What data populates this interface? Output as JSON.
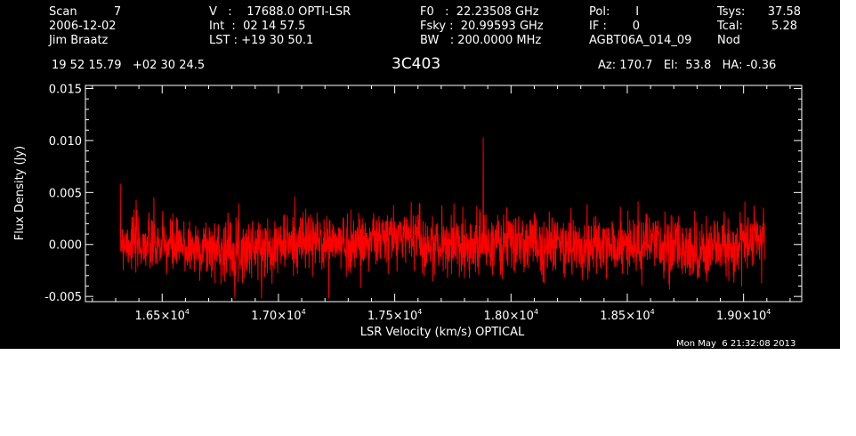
{
  "header": {
    "col1": [
      "Scan          7",
      "2006-12-02",
      "Jim Braatz"
    ],
    "col2": [
      "V   :    17688.0 OPTI-LSR",
      "Int  :  02 14 57.5",
      "LST : +19 30 50.1"
    ],
    "col3": [
      "F0   :  22.23508 GHz",
      "Fsky :  20.99593 GHz",
      "BW   : 200.0000 MHz"
    ],
    "col4": [
      "Pol:       I",
      "IF :       0",
      "AGBT06A_014_09"
    ],
    "col5": [
      "Tsys:",
      "Tcal:",
      "Nod"
    ],
    "col6": [
      "37.58",
      "5.28",
      ""
    ],
    "coords": "19 52 15.79   +02 30 24.5",
    "source": "3C403",
    "pointing": "Az: 170.7   El:  53.8   HA: -0.36"
  },
  "footer": {
    "timestamp": "Mon May  6 21:32:08 2013"
  },
  "colors": {
    "background": "#000000",
    "axes": "#ffffff",
    "trace": "#ff0000"
  },
  "chart_data": {
    "type": "line",
    "xlabel": "LSR Velocity (km/s) OPTICAL",
    "ylabel": "Flux Density (Jy)",
    "xlim": [
      16170,
      19250
    ],
    "ylim": [
      -0.0055,
      0.0153
    ],
    "xticks": [
      16500,
      17000,
      17500,
      18000,
      18500,
      19000
    ],
    "xtick_labels": [
      {
        "mant": "1.65×10",
        "exp": "4"
      },
      {
        "mant": "1.70×10",
        "exp": "4"
      },
      {
        "mant": "1.75×10",
        "exp": "4"
      },
      {
        "mant": "1.80×10",
        "exp": "4"
      },
      {
        "mant": "1.85×10",
        "exp": "4"
      },
      {
        "mant": "1.90×10",
        "exp": "4"
      }
    ],
    "yticks": [
      -0.005,
      0.0,
      0.005,
      0.01,
      0.015
    ],
    "ytick_labels": [
      "-0.005",
      "0.000",
      "0.005",
      "0.010",
      "0.015"
    ],
    "series": [
      {
        "x_start": 16320,
        "x_end": 19090,
        "noise_rms": 0.0014,
        "baseline": [
          [
            16320,
            0.0004
          ],
          [
            16500,
            -0.0002
          ],
          [
            16700,
            -0.0004
          ],
          [
            16900,
            -0.0003
          ],
          [
            17100,
            0.0003
          ],
          [
            17300,
            0.0001
          ],
          [
            17500,
            0.0007
          ],
          [
            17600,
            0.0012
          ],
          [
            17620,
            -0.0001
          ],
          [
            17800,
            0.0
          ],
          [
            18000,
            0.0001
          ],
          [
            18200,
            0.0
          ],
          [
            18400,
            -0.0003
          ],
          [
            18600,
            0.0
          ],
          [
            18800,
            -0.0006
          ],
          [
            18950,
            -0.0003
          ],
          [
            19090,
            0.0008
          ]
        ],
        "spike": {
          "x": 17880,
          "y": 0.0103
        }
      }
    ]
  }
}
